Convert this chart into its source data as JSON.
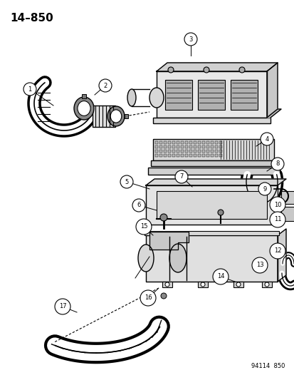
{
  "title": "14–850",
  "footer": "94114  850",
  "bg_color": "#ffffff",
  "fg_color": "#000000",
  "figsize": [
    4.14,
    5.33
  ],
  "dpi": 100
}
